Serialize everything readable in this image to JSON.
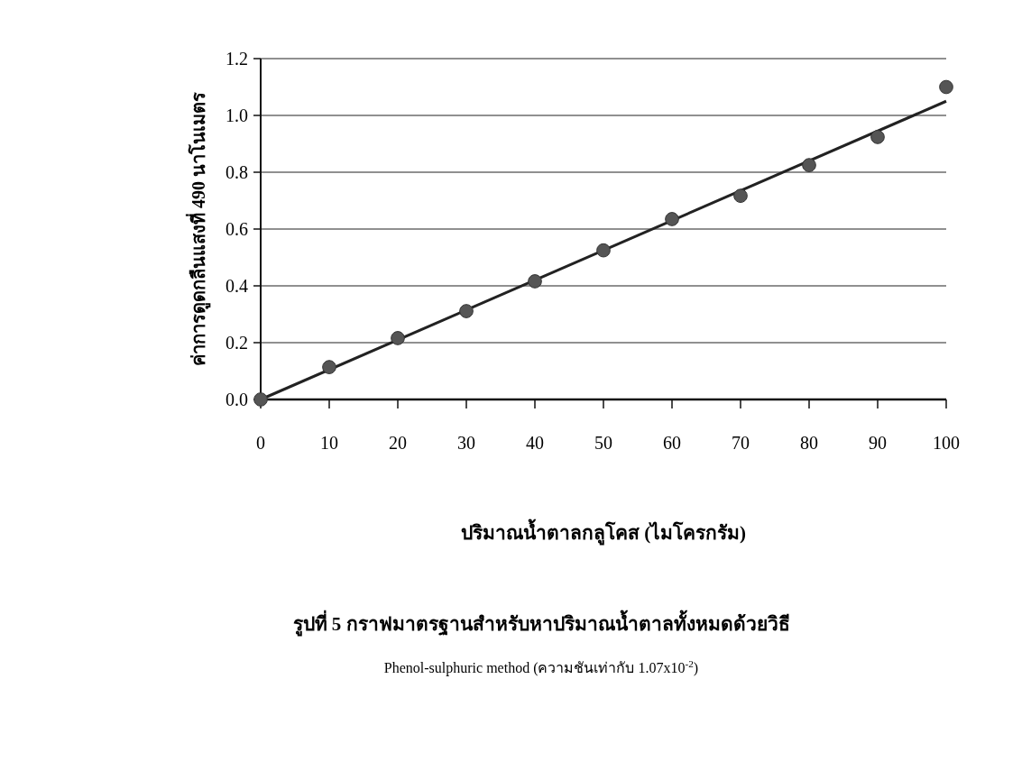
{
  "chart_data": {
    "type": "scatter",
    "title": "รูปที่ 5  กราฟมาตรฐานสำหรับหาปริมาณน้ำตาลทั้งหมดด้วยวิธี",
    "subtitle": "Phenol-sulphuric method (ความชันเท่ากับ 1.07x10$^{-2}$)",
    "xlabel": "ปริมาณน้ำตาลกลูโคส (ไมโครกรัม)",
    "ylabel": "ค่าการดูดกลืนแสงที่ 490 นาโนเมตร",
    "x": [
      0,
      10,
      20,
      30,
      40,
      50,
      60,
      70,
      80,
      90,
      100
    ],
    "series": [
      {
        "color": "#555555",
        "marker": "circle",
        "values": [
          0,
          0.114,
          0.216,
          0.311,
          0.416,
          0.525,
          0.635,
          0.717,
          0.825,
          0.924,
          1.1
        ]
      },
      {
        "type": "line",
        "color": "#222222",
        "x": [
          0,
          100
        ],
        "values": [
          0,
          1.05
        ],
        "line_style": "solid"
      }
    ],
    "xlim": [
      0,
      100
    ],
    "xticks": [
      0,
      10,
      20,
      30,
      40,
      50,
      60,
      70,
      80,
      90,
      100
    ],
    "ylim": [
      0,
      1.2
    ],
    "yticks": [
      {
        "value": 0,
        "label": "0.0"
      },
      0.2,
      0.4,
      0.6,
      0.8,
      {
        "value": 1,
        "label": "1.0"
      },
      1.2
    ],
    "grid": "y"
  }
}
